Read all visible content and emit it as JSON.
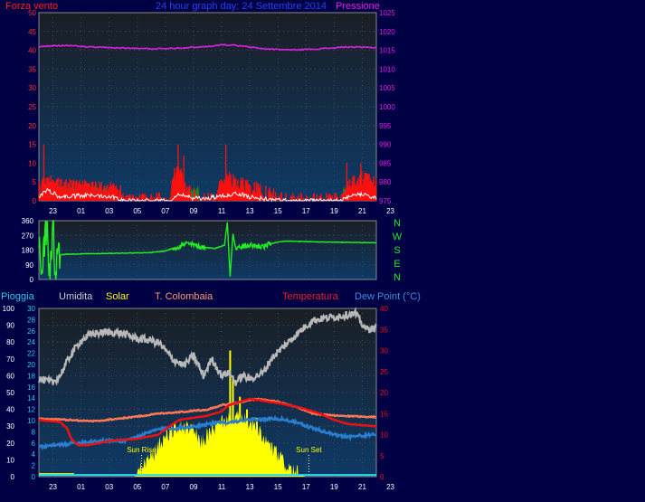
{
  "colors": {
    "background": "#000044",
    "plot_top": "#1a1e24",
    "plot_bottom": "#0e3a66",
    "grid_dot": "#3a5068",
    "wind_avg": "#ff1010",
    "wind_gust": "#ffffff",
    "wind_green": "#1e8f1e",
    "pressure": "#e020e0",
    "direction": "#22ee22",
    "humidity": "#b8b8b8",
    "solar": "#ffff00",
    "temp_colombaia": "#ff7755",
    "temperature": "#ee1111",
    "dew_point": "#2a7ed0",
    "rain": "#22ddee",
    "axis_left_top": "#ff3030",
    "axis_right_top": "#e020e0",
    "title_blue": "#2244ee",
    "axis_white": "#ffffff",
    "axis_cyan": "#22ccee"
  },
  "header": {
    "wind_label": "Forza vento",
    "title": "24 hour graph day: 24 Settembre 2014",
    "pressure_label": "Pressione"
  },
  "direction_labels": [
    "N",
    "W",
    "S",
    "E",
    "N"
  ],
  "legend": {
    "rain": "Pioggia",
    "humidity": "Umidita",
    "solar": "Solar",
    "temp_colombaia": "T. Colombaia",
    "temperature": "Temperatura",
    "dew_point": "Dew Point (°C)"
  },
  "annotations": {
    "sun_rise": "Sun Rise",
    "sun_set": "Sun Set"
  },
  "chart_data": [
    {
      "type": "line",
      "id": "wind_pressure",
      "title": "24 hour graph day: 24 Settembre 2014",
      "x_ticks": [
        "23",
        "01",
        "03",
        "05",
        "07",
        "09",
        "11",
        "13",
        "15",
        "17",
        "19",
        "21",
        "23"
      ],
      "y_left": {
        "label": "Forza vento",
        "ticks": [
          0,
          5,
          10,
          15,
          20,
          25,
          30,
          35,
          40,
          45,
          50
        ],
        "range": [
          0,
          50
        ]
      },
      "y_right": {
        "label": "Pressione",
        "ticks": [
          975,
          980,
          985,
          990,
          995,
          1000,
          1005,
          1010,
          1015,
          1020,
          1025
        ],
        "range": [
          975,
          1025
        ]
      },
      "pressure_profile": [
        [
          0,
          1016
        ],
        [
          2,
          1016.3
        ],
        [
          4,
          1015.8
        ],
        [
          6,
          1015.6
        ],
        [
          8,
          1015.4
        ],
        [
          10,
          1015.6
        ],
        [
          12,
          1016.0
        ],
        [
          13,
          1016.5
        ],
        [
          14,
          1016.3
        ],
        [
          16,
          1015.4
        ],
        [
          18,
          1015.1
        ],
        [
          20,
          1015.4
        ],
        [
          22,
          1015.9
        ],
        [
          24,
          1015.7
        ]
      ],
      "pressure_noise": 0.15,
      "wind_avg_profile": [
        [
          0,
          3
        ],
        [
          0.5,
          5
        ],
        [
          1.5,
          4
        ],
        [
          3,
          3.5
        ],
        [
          5,
          3
        ],
        [
          5.8,
          2
        ],
        [
          6,
          0
        ],
        [
          9.3,
          0
        ],
        [
          9.5,
          6
        ],
        [
          10,
          8
        ],
        [
          10.5,
          3
        ],
        [
          11,
          1
        ],
        [
          11.5,
          0
        ],
        [
          12.5,
          0
        ],
        [
          12.8,
          3
        ],
        [
          13.5,
          6
        ],
        [
          14.5,
          4
        ],
        [
          15.5,
          3
        ],
        [
          16,
          2
        ],
        [
          17.5,
          0
        ],
        [
          21.5,
          0
        ],
        [
          22,
          4
        ],
        [
          23,
          6
        ],
        [
          24,
          4
        ]
      ],
      "wind_noise": 2.2,
      "wind_spikes": [
        [
          0.35,
          15
        ],
        [
          9.9,
          15
        ],
        [
          10.3,
          12
        ],
        [
          13.3,
          15
        ],
        [
          21.9,
          10
        ],
        [
          22.9,
          10
        ]
      ],
      "wind_gust_profile": [
        [
          0,
          1
        ],
        [
          0.6,
          3
        ],
        [
          1.5,
          1
        ],
        [
          4,
          1.5
        ],
        [
          5.5,
          1
        ],
        [
          6,
          0
        ],
        [
          9.3,
          0
        ],
        [
          10,
          2
        ],
        [
          11,
          0.5
        ],
        [
          12.8,
          1
        ],
        [
          14,
          2
        ],
        [
          15,
          1
        ],
        [
          16,
          0.5
        ],
        [
          17.5,
          0
        ],
        [
          21.5,
          0
        ],
        [
          22.5,
          1.5
        ],
        [
          23.2,
          2
        ],
        [
          24,
          0.5
        ]
      ],
      "wind_green_bands": [
        [
          1.3,
          3.2
        ],
        [
          3.4,
          5.2
        ],
        [
          10.7,
          11.4
        ],
        [
          21.6,
          22.6
        ]
      ]
    },
    {
      "type": "line",
      "id": "wind_direction",
      "y_ticks": [
        0,
        90,
        180,
        270,
        360
      ],
      "range": [
        0,
        360
      ],
      "direction_profile": [
        [
          0,
          300
        ],
        [
          0.2,
          20
        ],
        [
          0.5,
          340
        ],
        [
          0.8,
          60
        ],
        [
          1.0,
          330
        ],
        [
          1.2,
          15
        ],
        [
          1.4,
          280
        ],
        [
          1.5,
          150
        ],
        [
          2,
          155
        ],
        [
          5,
          160
        ],
        [
          8,
          165
        ],
        [
          8.5,
          170
        ],
        [
          9,
          175
        ],
        [
          9.5,
          190
        ],
        [
          10.5,
          220
        ],
        [
          11.5,
          200
        ],
        [
          12.5,
          190
        ],
        [
          13.2,
          210
        ],
        [
          13.4,
          350
        ],
        [
          13.6,
          20
        ],
        [
          13.8,
          280
        ],
        [
          14,
          190
        ],
        [
          15,
          210
        ],
        [
          16,
          200
        ],
        [
          16.5,
          220
        ],
        [
          17.5,
          235
        ],
        [
          20,
          230
        ],
        [
          24,
          225
        ]
      ]
    },
    {
      "type": "line",
      "id": "temperature_humidity_solar",
      "x_ticks": [
        "23",
        "01",
        "03",
        "05",
        "07",
        "09",
        "11",
        "13",
        "15",
        "17",
        "19",
        "21",
        "23"
      ],
      "y_left_humidity": {
        "ticks": [
          0,
          10,
          20,
          30,
          40,
          50,
          60,
          70,
          80,
          90,
          100
        ],
        "range": [
          0,
          100
        ]
      },
      "y_left_rain": {
        "ticks": [
          0,
          2,
          4,
          6,
          8,
          10,
          12,
          14,
          16,
          18,
          20,
          22,
          24,
          26,
          28,
          30
        ],
        "range": [
          0,
          30
        ]
      },
      "y_right_temp": {
        "ticks": [
          0,
          5,
          10,
          15,
          20,
          25,
          30,
          35,
          40
        ],
        "range": [
          0,
          40
        ]
      },
      "humidity_profile": [
        [
          0,
          58
        ],
        [
          1,
          56
        ],
        [
          1.5,
          60
        ],
        [
          2.3,
          73
        ],
        [
          3,
          81
        ],
        [
          3.8,
          85
        ],
        [
          5,
          86
        ],
        [
          6,
          85
        ],
        [
          7,
          82
        ],
        [
          8,
          81
        ],
        [
          8.6,
          79
        ],
        [
          9.5,
          70
        ],
        [
          10.3,
          66
        ],
        [
          11,
          72
        ],
        [
          11.7,
          60
        ],
        [
          12.3,
          70
        ],
        [
          13,
          60
        ],
        [
          13.5,
          62
        ],
        [
          14,
          56
        ],
        [
          14.5,
          60
        ],
        [
          15,
          58
        ],
        [
          16,
          62
        ],
        [
          16.5,
          70
        ],
        [
          17.5,
          78
        ],
        [
          18.5,
          86
        ],
        [
          19.5,
          93
        ],
        [
          21,
          95
        ],
        [
          22.5,
          97
        ],
        [
          23.2,
          88
        ],
        [
          24,
          88
        ]
      ],
      "humidity_noise": 2.2,
      "temperature_profile": [
        [
          0,
          13.5
        ],
        [
          1.5,
          13
        ],
        [
          2,
          11.5
        ],
        [
          2.3,
          9
        ],
        [
          2.8,
          7.5
        ],
        [
          3.5,
          7.5
        ],
        [
          5,
          8.5
        ],
        [
          7,
          9
        ],
        [
          8.5,
          10
        ],
        [
          9.3,
          12
        ],
        [
          10,
          13.5
        ],
        [
          12,
          14.5
        ],
        [
          13,
          15.5
        ],
        [
          13.5,
          17
        ],
        [
          15,
          18.5
        ],
        [
          17,
          17.5
        ],
        [
          18.5,
          16.5
        ],
        [
          20,
          15
        ],
        [
          21,
          13.5
        ],
        [
          22,
          12.5
        ],
        [
          24,
          12
        ]
      ],
      "temp_colombaia_profile": [
        [
          0,
          13.8
        ],
        [
          4,
          13.2
        ],
        [
          7,
          14.3
        ],
        [
          8.5,
          15
        ],
        [
          10.5,
          15.5
        ],
        [
          12,
          16
        ],
        [
          13,
          17
        ],
        [
          14,
          17.5
        ],
        [
          15.5,
          18.5
        ],
        [
          17,
          17.8
        ],
        [
          18.5,
          16.3
        ],
        [
          19.5,
          15
        ],
        [
          21,
          14.5
        ],
        [
          24,
          14.2
        ]
      ],
      "dew_point_profile": [
        [
          0,
          7
        ],
        [
          2,
          7.8
        ],
        [
          4,
          8.5
        ],
        [
          6,
          8.5
        ],
        [
          7,
          9.5
        ],
        [
          8.5,
          11.3
        ],
        [
          10.5,
          11.7
        ],
        [
          12,
          12.5
        ],
        [
          13.5,
          13
        ],
        [
          15,
          13.5
        ],
        [
          17,
          13.8
        ],
        [
          18,
          13.2
        ],
        [
          19.5,
          11.5
        ],
        [
          21,
          10
        ],
        [
          22,
          9.5
        ],
        [
          24,
          10
        ]
      ],
      "dew_point_noise": 0.35,
      "solar_profile": [
        [
          0,
          0
        ],
        [
          6.8,
          0
        ],
        [
          7.5,
          3
        ],
        [
          8.3,
          6
        ],
        [
          9,
          10
        ],
        [
          10,
          12
        ],
        [
          11,
          11
        ],
        [
          11.5,
          8
        ],
        [
          12.3,
          11
        ],
        [
          13,
          13
        ],
        [
          14,
          14
        ],
        [
          15,
          13
        ],
        [
          16,
          9
        ],
        [
          17,
          5
        ],
        [
          17.8,
          2
        ],
        [
          18.5,
          0.5
        ],
        [
          19,
          0
        ],
        [
          24,
          0
        ]
      ],
      "solar_spikes": [
        [
          13.6,
          30
        ],
        [
          13.8,
          24
        ],
        [
          14.3,
          19
        ],
        [
          14.8,
          16
        ],
        [
          15.5,
          14
        ]
      ],
      "rain_profile": [
        [
          0,
          0.3
        ],
        [
          24,
          0.3
        ]
      ],
      "sun_rise_hour": 7.3,
      "sun_set_hour": 19.2
    }
  ]
}
